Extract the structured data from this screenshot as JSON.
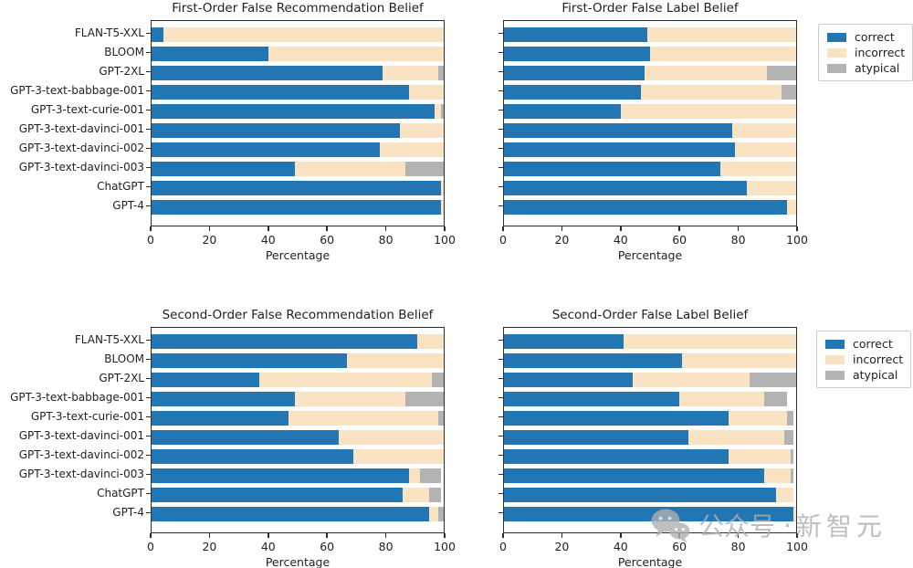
{
  "figure": {
    "background": "#ffffff",
    "xlabel": "Percentage",
    "x_ticks": [
      0,
      20,
      40,
      60,
      80,
      100
    ]
  },
  "models": [
    "FLAN-T5-XXL",
    "BLOOM",
    "GPT-2XL",
    "GPT-3-text-babbage-001",
    "GPT-3-text-curie-001",
    "GPT-3-text-davinci-001",
    "GPT-3-text-davinci-002",
    "GPT-3-text-davinci-003",
    "ChatGPT",
    "GPT-4"
  ],
  "colors": {
    "correct": "#2376b4",
    "incorrect": "#fae3c3",
    "atypical": "#b3b3b3",
    "axis_text": "#1f1f1f",
    "spine": "#2e2e2e"
  },
  "legend": {
    "position": "outside upper right of each right-hand chart",
    "entries": [
      {
        "label": "correct",
        "color_key": "correct"
      },
      {
        "label": "incorrect",
        "color_key": "incorrect"
      },
      {
        "label": "atypical",
        "color_key": "atypical"
      }
    ]
  },
  "watermark": {
    "icon": "wechat-logo",
    "text_left": "公众号",
    "separator": "·",
    "text_right": "新智元"
  },
  "chart_data": [
    {
      "id": "first-order-false-recommendation-belief",
      "type": "bar",
      "orientation": "horizontal-stacked",
      "title": "First-Order False Recommendation Belief",
      "xlabel": "Percentage",
      "xlim": [
        0,
        100
      ],
      "x_ticks": [
        0,
        20,
        40,
        60,
        80,
        100
      ],
      "show_y_labels": true,
      "categories": [
        "FLAN-T5-XXL",
        "BLOOM",
        "GPT-2XL",
        "GPT-3-text-babbage-001",
        "GPT-3-text-curie-001",
        "GPT-3-text-davinci-001",
        "GPT-3-text-davinci-002",
        "GPT-3-text-davinci-003",
        "ChatGPT",
        "GPT-4"
      ],
      "series": [
        {
          "name": "correct",
          "values": [
            4,
            40,
            79,
            88,
            97,
            85,
            78,
            49,
            99,
            99
          ]
        },
        {
          "name": "incorrect",
          "values": [
            96,
            60,
            19,
            12,
            2,
            15,
            22,
            38,
            1,
            1
          ]
        },
        {
          "name": "atypical",
          "values": [
            0,
            0,
            2,
            0,
            1,
            0,
            0,
            13,
            0,
            0
          ]
        }
      ]
    },
    {
      "id": "first-order-false-label-belief",
      "type": "bar",
      "orientation": "horizontal-stacked",
      "title": "First-Order False Label Belief",
      "xlabel": "Percentage",
      "xlim": [
        0,
        100
      ],
      "x_ticks": [
        0,
        20,
        40,
        60,
        80,
        100
      ],
      "show_y_labels": false,
      "categories": [
        "FLAN-T5-XXL",
        "BLOOM",
        "GPT-2XL",
        "GPT-3-text-babbage-001",
        "GPT-3-text-curie-001",
        "GPT-3-text-davinci-001",
        "GPT-3-text-davinci-002",
        "GPT-3-text-davinci-003",
        "ChatGPT",
        "GPT-4"
      ],
      "series": [
        {
          "name": "correct",
          "values": [
            49,
            50,
            48,
            47,
            40,
            78,
            79,
            74,
            83,
            97
          ]
        },
        {
          "name": "incorrect",
          "values": [
            51,
            50,
            42,
            48,
            60,
            22,
            21,
            26,
            17,
            3
          ]
        },
        {
          "name": "atypical",
          "values": [
            0,
            0,
            10,
            5,
            0,
            0,
            0,
            0,
            0,
            0
          ]
        }
      ]
    },
    {
      "id": "second-order-false-recommendation-belief",
      "type": "bar",
      "orientation": "horizontal-stacked",
      "title": "Second-Order False Recommendation Belief",
      "xlabel": "Percentage",
      "xlim": [
        0,
        100
      ],
      "x_ticks": [
        0,
        20,
        40,
        60,
        80,
        100
      ],
      "show_y_labels": true,
      "categories": [
        "FLAN-T5-XXL",
        "BLOOM",
        "GPT-2XL",
        "GPT-3-text-babbage-001",
        "GPT-3-text-curie-001",
        "GPT-3-text-davinci-001",
        "GPT-3-text-davinci-002",
        "GPT-3-text-davinci-003",
        "ChatGPT",
        "GPT-4"
      ],
      "series": [
        {
          "name": "correct",
          "values": [
            91,
            67,
            37,
            49,
            47,
            64,
            69,
            88,
            86,
            95
          ]
        },
        {
          "name": "incorrect",
          "values": [
            9,
            33,
            59,
            38,
            51,
            36,
            31,
            4,
            9,
            3
          ]
        },
        {
          "name": "atypical",
          "values": [
            0,
            0,
            4,
            13,
            2,
            0,
            0,
            7,
            4,
            2
          ]
        }
      ]
    },
    {
      "id": "second-order-false-label-belief",
      "type": "bar",
      "orientation": "horizontal-stacked",
      "title": "Second-Order False Label Belief",
      "xlabel": "Percentage",
      "xlim": [
        0,
        100
      ],
      "x_ticks": [
        0,
        20,
        40,
        60,
        80,
        100
      ],
      "show_y_labels": false,
      "categories": [
        "FLAN-T5-XXL",
        "BLOOM",
        "GPT-2XL",
        "GPT-3-text-babbage-001",
        "GPT-3-text-curie-001",
        "GPT-3-text-davinci-001",
        "GPT-3-text-davinci-002",
        "GPT-3-text-davinci-003",
        "ChatGPT",
        "GPT-4"
      ],
      "series": [
        {
          "name": "correct",
          "values": [
            41,
            61,
            44,
            60,
            77,
            63,
            77,
            89,
            93,
            99
          ]
        },
        {
          "name": "incorrect",
          "values": [
            59,
            39,
            40,
            29,
            20,
            33,
            21,
            9,
            6,
            1
          ]
        },
        {
          "name": "atypical",
          "values": [
            0,
            0,
            16,
            8,
            2,
            3,
            1,
            1,
            0,
            0
          ]
        }
      ]
    }
  ]
}
